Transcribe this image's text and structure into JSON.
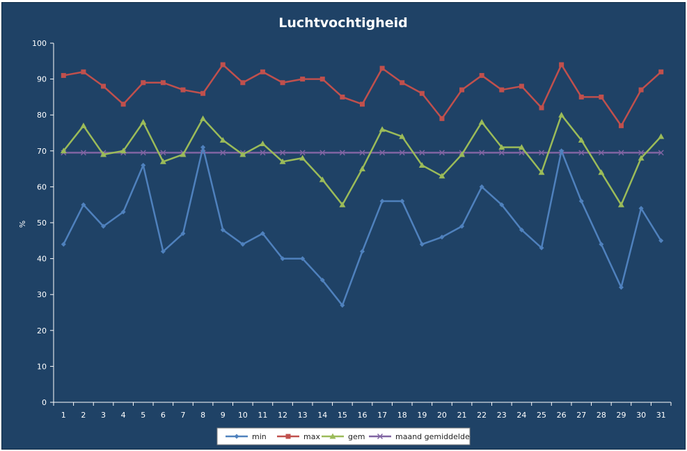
{
  "chart_data": {
    "type": "line",
    "title": "Luchtvochtigheid",
    "xlabel": "",
    "ylabel": "%",
    "ylim": [
      0,
      100
    ],
    "yticks": [
      0,
      10,
      20,
      30,
      40,
      50,
      60,
      70,
      80,
      90,
      100
    ],
    "grid": false,
    "legend_position": "bottom",
    "categories": [
      "1",
      "2",
      "3",
      "4",
      "5",
      "6",
      "7",
      "8",
      "9",
      "10",
      "11",
      "12",
      "13",
      "14",
      "15",
      "16",
      "17",
      "18",
      "19",
      "20",
      "21",
      "22",
      "23",
      "24",
      "25",
      "26",
      "27",
      "28",
      "29",
      "30",
      "31"
    ],
    "series": [
      {
        "name": "min",
        "color": "#4f81bd",
        "marker": "diamond",
        "values": [
          44,
          55,
          49,
          53,
          66,
          42,
          47,
          71,
          48,
          44,
          47,
          40,
          40,
          34,
          27,
          42,
          56,
          56,
          44,
          46,
          49,
          60,
          55,
          48,
          43,
          70,
          56,
          44,
          32,
          54,
          45
        ]
      },
      {
        "name": "max",
        "color": "#c0504d",
        "marker": "square",
        "values": [
          91,
          92,
          88,
          83,
          89,
          89,
          87,
          86,
          94,
          89,
          92,
          89,
          90,
          90,
          85,
          83,
          93,
          89,
          86,
          79,
          87,
          91,
          87,
          88,
          82,
          94,
          85,
          85,
          77,
          87,
          92
        ]
      },
      {
        "name": "gem",
        "color": "#9bbb59",
        "marker": "triangle",
        "values": [
          70,
          77,
          69,
          70,
          78,
          67,
          69,
          79,
          73,
          69,
          72,
          67,
          68,
          62,
          55,
          65,
          76,
          74,
          66,
          63,
          69,
          78,
          71,
          71,
          64,
          80,
          73,
          64,
          55,
          68,
          74
        ]
      },
      {
        "name": "maand gemiddelde",
        "color": "#8064a2",
        "marker": "x",
        "values": [
          69.5,
          69.5,
          69.5,
          69.5,
          69.5,
          69.5,
          69.5,
          69.5,
          69.5,
          69.5,
          69.5,
          69.5,
          69.5,
          69.5,
          69.5,
          69.5,
          69.5,
          69.5,
          69.5,
          69.5,
          69.5,
          69.5,
          69.5,
          69.5,
          69.5,
          69.5,
          69.5,
          69.5,
          69.5,
          69.5,
          69.5
        ]
      }
    ]
  }
}
